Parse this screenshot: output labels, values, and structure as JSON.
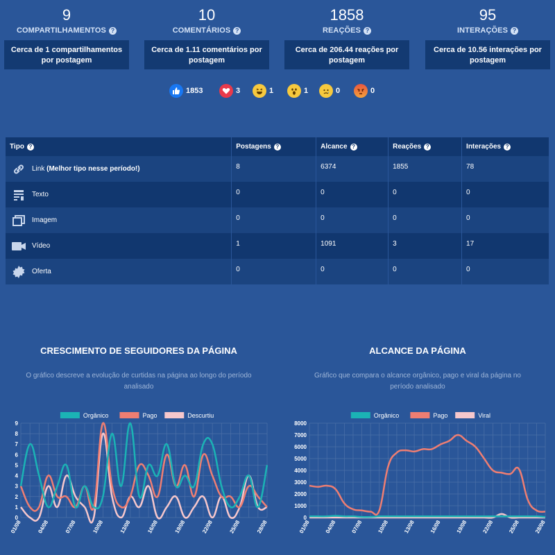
{
  "stats": [
    {
      "value": "9",
      "label": "COMPARTILHAMENTOS",
      "detail": "Cerca de 1 compartilhamentos por postagem"
    },
    {
      "value": "10",
      "label": "COMENTÁRIOS",
      "detail": "Cerca de 1.11 comentários por postagem"
    },
    {
      "value": "1858",
      "label": "REAÇÕES",
      "detail": "Cerca de 206.44 reações por postagem"
    },
    {
      "value": "95",
      "label": "INTERAÇÕES",
      "detail": "Cerca de 10.56 interações por postagem"
    }
  ],
  "reactions": [
    {
      "icon": "like-icon",
      "color": "#1877f2",
      "count": "1853"
    },
    {
      "icon": "love-icon",
      "color": "#e83a4b",
      "count": "3"
    },
    {
      "icon": "haha-icon",
      "color": "#f7c93e",
      "count": "1"
    },
    {
      "icon": "wow-icon",
      "color": "#f7c93e",
      "count": "1"
    },
    {
      "icon": "sad-icon",
      "color": "#f7c93e",
      "count": "0"
    },
    {
      "icon": "angry-icon",
      "color": "#e9573f",
      "count": "0"
    }
  ],
  "table": {
    "headers": [
      "Tipo",
      "Postagens",
      "Alcance",
      "Reações",
      "Interações"
    ],
    "rows": [
      {
        "tipo": "Link",
        "note": "(Melhor tipo nesse período!)",
        "icon": "link-icon",
        "postagens": "8",
        "alcance": "6374",
        "reacoes": "1855",
        "interacoes": "78"
      },
      {
        "tipo": "Texto",
        "note": "",
        "icon": "text-icon",
        "postagens": "0",
        "alcance": "0",
        "reacoes": "0",
        "interacoes": "0"
      },
      {
        "tipo": "Imagem",
        "note": "",
        "icon": "image-icon",
        "postagens": "0",
        "alcance": "0",
        "reacoes": "0",
        "interacoes": "0"
      },
      {
        "tipo": "Vídeo",
        "note": "",
        "icon": "video-icon",
        "postagens": "1",
        "alcance": "1091",
        "reacoes": "3",
        "interacoes": "17"
      },
      {
        "tipo": "Oferta",
        "note": "",
        "icon": "offer-icon",
        "postagens": "0",
        "alcance": "0",
        "reacoes": "0",
        "interacoes": "0"
      }
    ]
  },
  "charts": {
    "left": {
      "title": "CRESCIMENTO DE SEGUIDORES DA PÁGINA",
      "subtitle_line1": "O gráfico descreve a evolução de curtidas na página ao longo do período",
      "subtitle_line2": "analisado"
    },
    "right": {
      "title": "ALCANCE DA PÁGINA",
      "subtitle_line1": "Gráfico que compara o alcance orgânico, pago e viral da página no",
      "subtitle_line2": "período analisado"
    }
  },
  "chart_data": [
    {
      "type": "line",
      "title": "CRESCIMENTO DE SEGUIDORES DA PÁGINA",
      "x": [
        "01/08",
        "02/08",
        "03/08",
        "04/08",
        "05/08",
        "06/08",
        "07/08",
        "08/08",
        "09/08",
        "10/08",
        "11/08",
        "12/08",
        "13/08",
        "14/08",
        "15/08",
        "16/08",
        "17/08",
        "18/08",
        "19/08",
        "20/08",
        "21/08",
        "22/08",
        "23/08",
        "24/08",
        "25/08",
        "26/08",
        "27/08",
        "28/08"
      ],
      "xticks": [
        "01/08",
        "04/08",
        "07/08",
        "10/08",
        "13/08",
        "16/08",
        "19/08",
        "22/08",
        "25/08",
        "28/08"
      ],
      "ylim": [
        0,
        9
      ],
      "yticks": [
        0,
        1,
        2,
        3,
        4,
        5,
        6,
        7,
        8,
        9
      ],
      "series": [
        {
          "name": "Orgânico",
          "color": "#1bb3b5",
          "values": [
            3,
            7,
            4,
            1,
            3,
            5,
            1,
            3,
            1,
            2,
            8,
            3,
            9,
            2,
            5,
            4,
            7,
            3,
            4,
            3,
            7,
            7,
            3,
            1,
            2,
            4,
            1,
            5
          ]
        },
        {
          "name": "Pago",
          "color": "#ef7e72",
          "values": [
            3,
            1,
            1,
            4,
            2,
            2,
            1,
            3,
            1,
            9,
            3,
            1,
            2,
            5,
            4,
            2,
            6,
            3,
            5,
            2,
            6,
            4,
            2,
            2,
            1,
            3,
            2,
            1
          ]
        },
        {
          "name": "Descurtiu",
          "color": "#f6c7cc",
          "values": [
            1,
            0,
            0,
            3,
            1,
            4,
            2,
            1,
            0,
            8,
            2,
            0,
            2,
            1,
            3,
            0,
            1,
            2,
            0,
            1,
            2,
            0,
            2,
            0,
            1,
            4,
            1,
            1
          ]
        }
      ],
      "legend": "top"
    },
    {
      "type": "line",
      "title": "ALCANCE DA PÁGINA",
      "x": [
        "01/08",
        "02/08",
        "03/08",
        "04/08",
        "05/08",
        "06/08",
        "07/08",
        "08/08",
        "09/08",
        "10/08",
        "11/08",
        "12/08",
        "13/08",
        "14/08",
        "15/08",
        "16/08",
        "17/08",
        "18/08",
        "19/08",
        "20/08",
        "21/08",
        "22/08",
        "23/08",
        "24/08",
        "25/08",
        "26/08",
        "27/08",
        "28/08"
      ],
      "xticks": [
        "01/08",
        "04/08",
        "07/08",
        "10/08",
        "13/08",
        "16/08",
        "19/08",
        "22/08",
        "25/08",
        "28/08"
      ],
      "ylim": [
        0,
        8000
      ],
      "yticks": [
        0,
        1000,
        2000,
        3000,
        4000,
        5000,
        6000,
        7000,
        8000
      ],
      "series": [
        {
          "name": "Orgânico",
          "color": "#1bb3b5",
          "values": [
            100,
            100,
            100,
            150,
            100,
            100,
            50,
            50,
            100,
            100,
            100,
            100,
            100,
            100,
            100,
            100,
            100,
            100,
            100,
            100,
            100,
            100,
            100,
            100,
            100,
            100,
            100,
            50
          ]
        },
        {
          "name": "Pago",
          "color": "#ef7e72",
          "values": [
            2700,
            2600,
            2700,
            2400,
            1200,
            700,
            600,
            500,
            600,
            4300,
            5500,
            5700,
            5600,
            5800,
            5800,
            6200,
            6500,
            7000,
            6500,
            6000,
            5000,
            4000,
            3800,
            3700,
            4100,
            1500,
            600,
            500
          ]
        },
        {
          "name": "Viral",
          "color": "#f6c7cc",
          "values": [
            0,
            0,
            0,
            0,
            0,
            0,
            0,
            0,
            0,
            0,
            0,
            0,
            0,
            0,
            0,
            0,
            0,
            0,
            0,
            0,
            0,
            0,
            300,
            0,
            0,
            0,
            0,
            0
          ]
        }
      ],
      "legend": "top"
    }
  ]
}
